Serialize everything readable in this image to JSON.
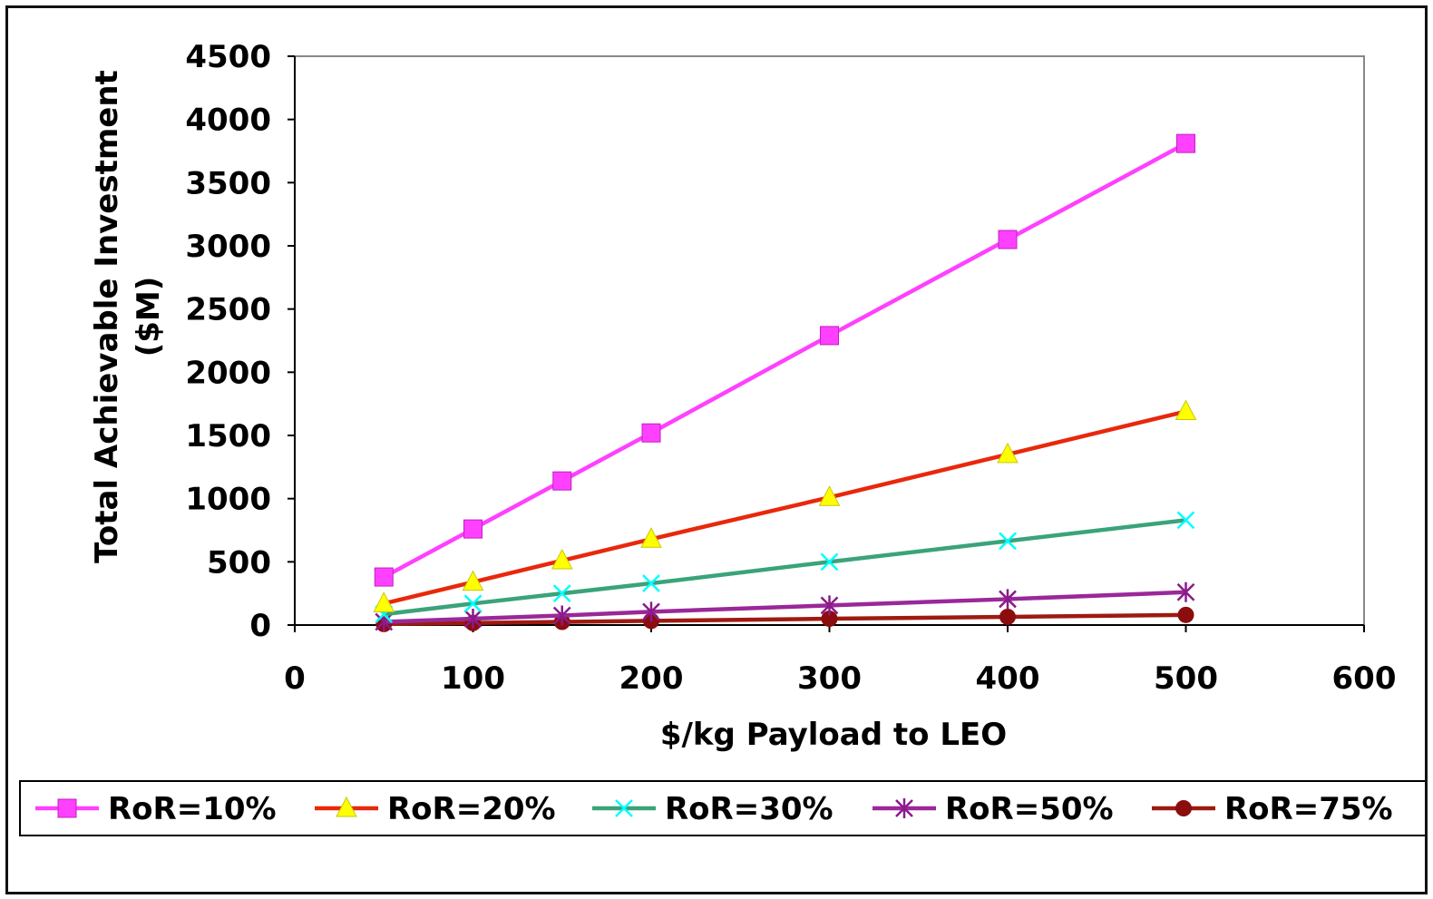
{
  "chart_data": {
    "type": "line",
    "title": "",
    "xlabel": "$/kg Payload to LEO",
    "ylabel_line1": "Total Achievable Investment",
    "ylabel_line2": "($M)",
    "xlim": [
      0,
      600
    ],
    "ylim": [
      0,
      4500
    ],
    "x_ticks": [
      0,
      100,
      200,
      300,
      400,
      500,
      600
    ],
    "y_ticks": [
      0,
      500,
      1000,
      1500,
      2000,
      2500,
      3000,
      3500,
      4000,
      4500
    ],
    "grid": false,
    "legend_position": "bottom",
    "x": [
      50,
      100,
      150,
      200,
      300,
      400,
      500
    ],
    "series": [
      {
        "name": "RoR=10%",
        "values": [
          380,
          760,
          1140,
          1520,
          2290,
          3050,
          3810
        ],
        "line_color": "#ff40ff",
        "marker": "square",
        "marker_color": "#ff40ff"
      },
      {
        "name": "RoR=20%",
        "values": [
          170,
          340,
          510,
          680,
          1010,
          1350,
          1690
        ],
        "line_color": "#e8280c",
        "marker": "triangle",
        "marker_color": "#ffff00"
      },
      {
        "name": "RoR=30%",
        "values": [
          85,
          170,
          250,
          330,
          500,
          665,
          830
        ],
        "line_color": "#3aa37a",
        "marker": "x",
        "marker_color": "#00ffff"
      },
      {
        "name": "RoR=50%",
        "values": [
          25,
          50,
          75,
          105,
          155,
          205,
          260
        ],
        "line_color": "#9a2899",
        "marker": "star",
        "marker_color": "#8b1a8b"
      },
      {
        "name": "RoR=75%",
        "values": [
          8,
          16,
          25,
          33,
          50,
          65,
          80
        ],
        "line_color": "#9e1a10",
        "marker": "circle",
        "marker_color": "#8b0d0d"
      }
    ]
  }
}
